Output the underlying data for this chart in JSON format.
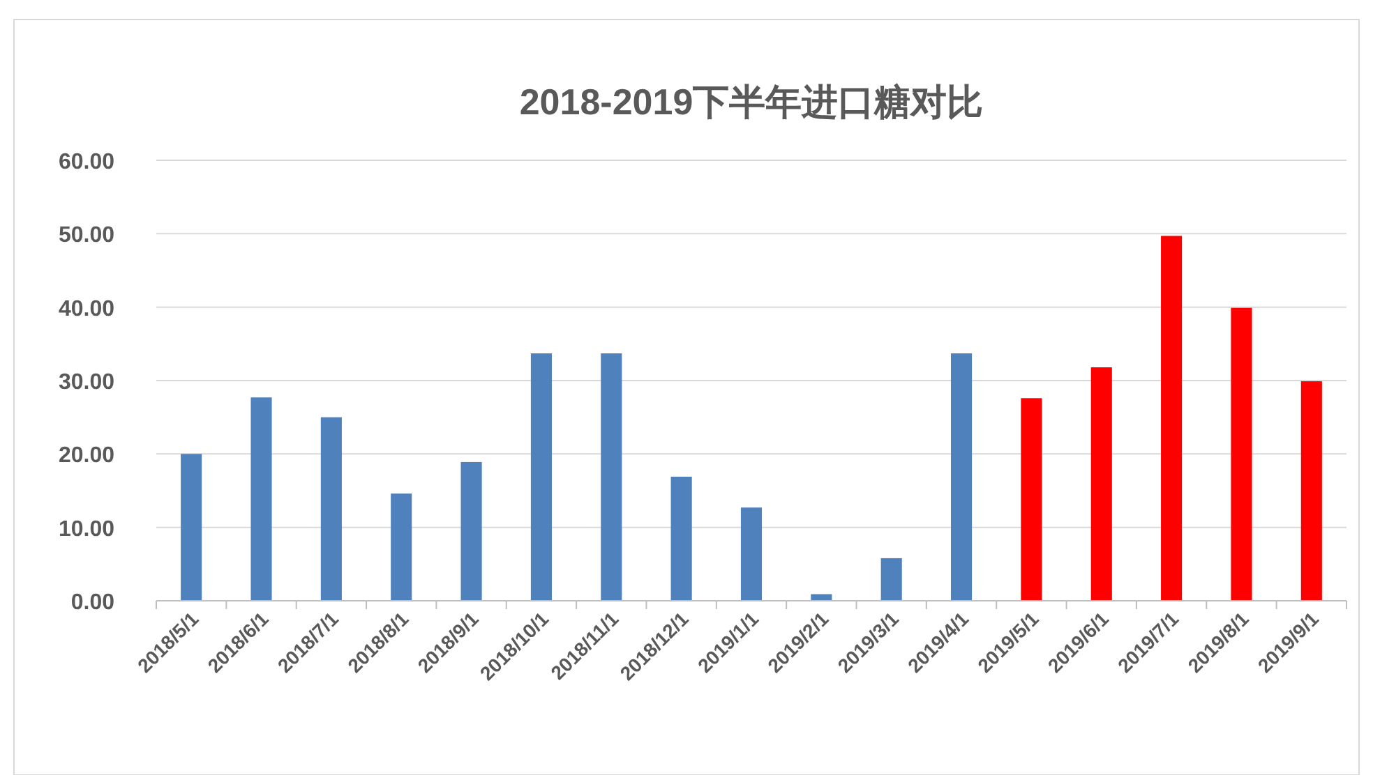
{
  "chart_data": {
    "type": "bar",
    "title": "2018-2019下半年进口糖对比",
    "categories": [
      "2018/5/1",
      "2018/6/1",
      "2018/7/1",
      "2018/8/1",
      "2018/9/1",
      "2018/10/1",
      "2018/11/1",
      "2018/12/1",
      "2019/1/1",
      "2019/2/1",
      "2019/3/1",
      "2019/4/1",
      "2019/5/1",
      "2019/6/1",
      "2019/7/1",
      "2019/8/1",
      "2019/9/1"
    ],
    "values": [
      20.0,
      27.7,
      25.0,
      14.6,
      18.9,
      33.7,
      33.7,
      16.9,
      12.7,
      0.9,
      5.8,
      33.7,
      27.6,
      31.8,
      49.7,
      39.9,
      29.9
    ],
    "colors": [
      "#4f81bd",
      "#4f81bd",
      "#4f81bd",
      "#4f81bd",
      "#4f81bd",
      "#4f81bd",
      "#4f81bd",
      "#4f81bd",
      "#4f81bd",
      "#4f81bd",
      "#4f81bd",
      "#4f81bd",
      "#ff0000",
      "#ff0000",
      "#ff0000",
      "#ff0000",
      "#ff0000"
    ],
    "ylim": [
      0,
      60
    ],
    "yticks": [
      {
        "value": 0,
        "label": "0.00"
      },
      {
        "value": 10,
        "label": "10.00"
      },
      {
        "value": 20,
        "label": "20.00"
      },
      {
        "value": 30,
        "label": "30.00"
      },
      {
        "value": 40,
        "label": "40.00"
      },
      {
        "value": 50,
        "label": "50.00"
      },
      {
        "value": 60,
        "label": "60.00"
      }
    ],
    "grid": "y"
  }
}
